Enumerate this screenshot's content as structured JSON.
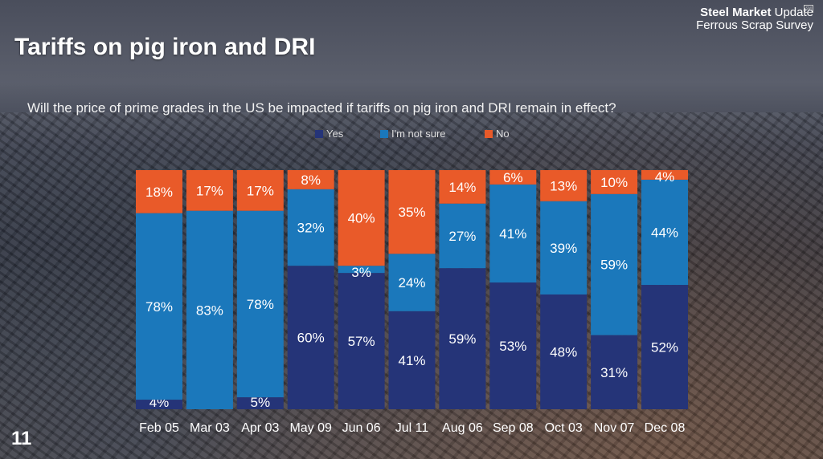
{
  "slide": {
    "title": "Tariffs on pig iron and DRI",
    "question": "Will the price of prime grades in the US be impacted if tariffs on pig iron and DRI remain in effect?",
    "page_number": "11"
  },
  "logo": {
    "brand_bold": "Steel Market",
    "brand_light": " Update",
    "subtitle": "Ferrous Scrap Survey",
    "badge": "SM"
  },
  "colors": {
    "yes": "#253478",
    "not_sure": "#1b78bb",
    "no": "#e95a29"
  },
  "chart_data": {
    "type": "bar",
    "stacked": true,
    "percent": true,
    "title": "",
    "xlabel": "",
    "ylabel": "",
    "ylim": [
      0,
      100
    ],
    "legend_position": "top",
    "categories": [
      "Feb 05",
      "Mar 03",
      "Apr 03",
      "May 09",
      "Jun 06",
      "Jul 11",
      "Aug 06",
      "Sep 08",
      "Oct 03",
      "Nov 07",
      "Dec 08"
    ],
    "series": [
      {
        "name": "Yes",
        "values": [
          4,
          0,
          5,
          60,
          57,
          41,
          59,
          53,
          48,
          31,
          52
        ],
        "labels": [
          "4%",
          "",
          "5%",
          "60%",
          "57%",
          "41%",
          "59%",
          "53%",
          "48%",
          "31%",
          "52%"
        ]
      },
      {
        "name": "I'm not sure",
        "values": [
          78,
          83,
          78,
          32,
          3,
          24,
          27,
          41,
          39,
          59,
          44
        ],
        "labels": [
          "78%",
          "83%",
          "78%",
          "32%",
          "3%",
          "24%",
          "27%",
          "41%",
          "39%",
          "59%",
          "44%"
        ]
      },
      {
        "name": "No",
        "values": [
          18,
          17,
          17,
          8,
          40,
          35,
          14,
          6,
          13,
          10,
          4
        ],
        "labels": [
          "18%",
          "17%",
          "17%",
          "8%",
          "40%",
          "35%",
          "14%",
          "6%",
          "13%",
          "10%",
          "4%"
        ]
      }
    ]
  }
}
